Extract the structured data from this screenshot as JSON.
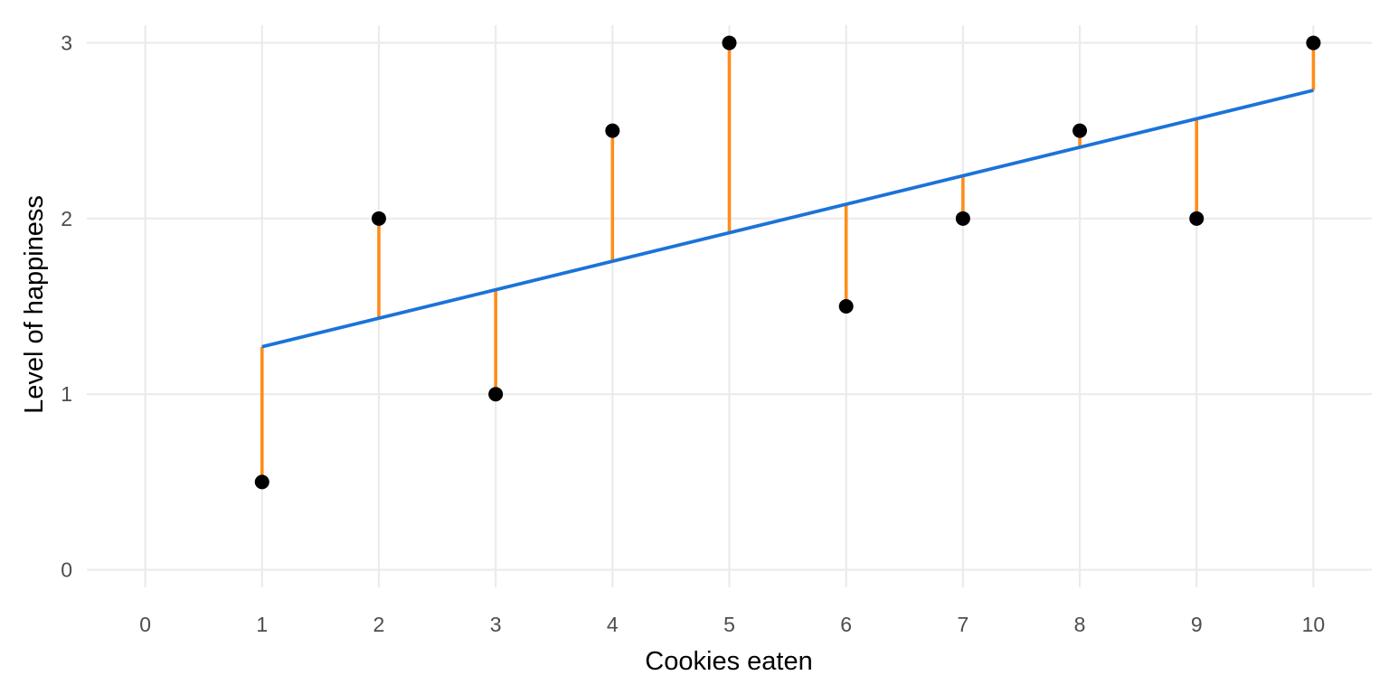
{
  "chart_data": {
    "type": "scatter",
    "title": "",
    "xlabel": "Cookies eaten",
    "ylabel": "Level of happiness",
    "x_ticks": [
      "0",
      "1",
      "2",
      "3",
      "4",
      "5",
      "6",
      "7",
      "8",
      "9",
      "10"
    ],
    "y_ticks": [
      "0",
      "1",
      "2",
      "3"
    ],
    "xlim": [
      -0.5,
      10.5
    ],
    "ylim": [
      -0.1,
      3.1
    ],
    "grid": true,
    "legend": "none",
    "points": {
      "x": [
        1,
        2,
        3,
        4,
        5,
        6,
        7,
        8,
        9,
        10
      ],
      "y": [
        0.5,
        2,
        1,
        2.5,
        3,
        1.5,
        2,
        2.5,
        2,
        3
      ]
    },
    "fitted_line": {
      "x": [
        1,
        10
      ],
      "y": [
        1.27,
        2.73
      ]
    },
    "colors": {
      "points": "#000000",
      "fit_line": "#1a73d9",
      "residuals": "#ff8c1a",
      "grid": "#ebebeb"
    }
  }
}
